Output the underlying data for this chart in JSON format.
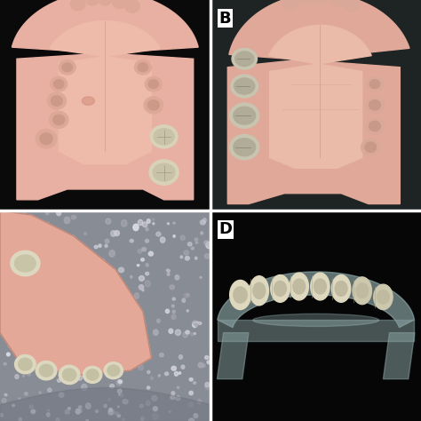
{
  "figsize": [
    4.74,
    4.74
  ],
  "dpi": 100,
  "background_color": "#000000",
  "panel_A": {
    "bg_color": "#0a0a0a",
    "cast_main_color": "#e8b0a0",
    "cast_shadow": "#c89080",
    "teeth_color": "#d8d0b8",
    "teeth_shadow": "#b0a890"
  },
  "panel_B": {
    "bg_color": "#1a1e1e",
    "cast_main_color": "#e0a898",
    "artificial_teeth_color": "#c0bcaa",
    "natural_teeth_color": "#d0c8b0"
  },
  "panel_C": {
    "bg_color": "#8a8e96",
    "bubble_color": "#b0b8c0",
    "cast_color": "#e8a898",
    "teeth_color": "#d8d4be"
  },
  "panel_D": {
    "bg_color": "#080808",
    "template_color": "#a8bcc0",
    "teeth_color": "#d8d4b8"
  },
  "labels": {
    "B": {
      "row": 0,
      "col": 1
    },
    "D": {
      "row": 1,
      "col": 1
    }
  },
  "label_fontsize": 13,
  "label_color": "#000000",
  "label_bg": "#ffffff"
}
